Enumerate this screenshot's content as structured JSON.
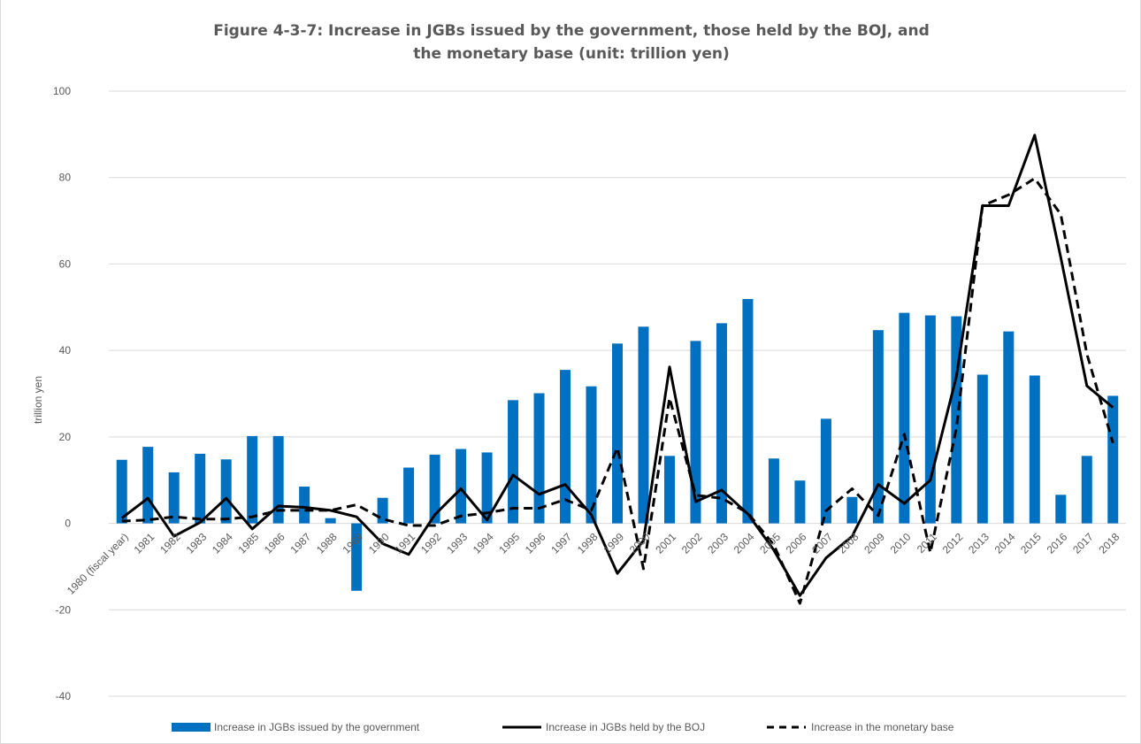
{
  "chart_data": {
    "type": "bar",
    "title_line1": "Figure 4-3-7: Increase in JGBs issued by the government, those held by the BOJ, and",
    "title_line2": "the monetary base (unit: trillion yen)",
    "ylabel": "trillion yen",
    "xlabel": "",
    "ylim": [
      -40,
      100
    ],
    "yticks": [
      -40,
      -20,
      0,
      20,
      40,
      60,
      80,
      100
    ],
    "grid": true,
    "legend_position": "bottom",
    "categories": [
      "1980 (fiscal year)",
      "1981",
      "1982",
      "1983",
      "1984",
      "1985",
      "1986",
      "1987",
      "1988",
      "1989",
      "1990",
      "1991",
      "1992",
      "1993",
      "1994",
      "1995",
      "1996",
      "1997",
      "1998",
      "1999",
      "2000",
      "2001",
      "2002",
      "2003",
      "2004",
      "2005",
      "2006",
      "2007",
      "2008",
      "2009",
      "2010",
      "2011",
      "2012",
      "2013",
      "2014",
      "2015",
      "2016",
      "2017",
      "2018"
    ],
    "series": [
      {
        "name": "Increase in JGBs issued by the government",
        "kind": "bar",
        "color": "#0070C0",
        "values": [
          14.7,
          17.7,
          11.8,
          16.1,
          14.8,
          20.2,
          20.2,
          8.5,
          1.2,
          -15.6,
          5.9,
          12.9,
          15.9,
          17.2,
          16.4,
          28.5,
          30.1,
          35.5,
          31.7,
          41.6,
          45.5,
          15.6,
          42.2,
          46.3,
          51.9,
          15.0,
          9.9,
          24.2,
          6.1,
          44.7,
          48.7,
          48.1,
          47.9,
          34.4,
          44.4,
          34.2,
          6.6,
          15.6,
          29.5
        ]
      },
      {
        "name": "Increase in JGBs held by the BOJ",
        "kind": "line",
        "dash": "solid",
        "color": "#000000",
        "values": [
          1.2,
          5.8,
          -3.0,
          0.2,
          5.8,
          -1.3,
          4.0,
          3.7,
          3.0,
          1.5,
          -4.7,
          -7.2,
          2.0,
          8.0,
          0.8,
          11.2,
          6.7,
          9.0,
          2.0,
          -11.6,
          -4.0,
          36.2,
          5.0,
          7.7,
          2.2,
          -6.2,
          -16.7,
          -8.0,
          -3.0,
          9.0,
          4.6,
          10.0,
          34.0,
          73.5,
          73.5,
          89.8,
          61.5,
          31.8,
          26.8
        ]
      },
      {
        "name": "Increase in the monetary base",
        "kind": "line",
        "dash": "dashed",
        "color": "#000000",
        "values": [
          0.5,
          0.8,
          1.5,
          1.0,
          1.0,
          1.5,
          3.0,
          3.0,
          3.0,
          4.3,
          1.0,
          -0.5,
          -0.5,
          1.7,
          2.4,
          3.5,
          3.5,
          5.5,
          3.0,
          17.5,
          -10.5,
          29.0,
          6.5,
          5.8,
          2.4,
          -5.0,
          -18.5,
          2.9,
          8.0,
          1.8,
          20.6,
          -6.8,
          22.0,
          73.5,
          76.0,
          79.8,
          71.5,
          39.2,
          18.6
        ]
      }
    ]
  }
}
